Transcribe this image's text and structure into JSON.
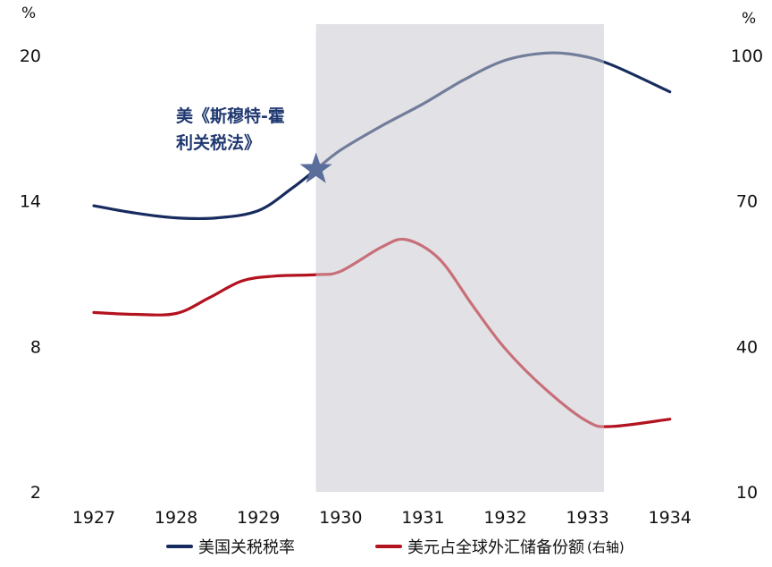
{
  "chart_data": {
    "type": "line",
    "title": "",
    "x": [
      1927,
      1928,
      1929,
      1930,
      1931,
      1932,
      1933,
      1934
    ],
    "x_tick_labels": [
      "1927",
      "1928",
      "1929",
      "1930",
      "1931",
      "1932",
      "1933",
      "1934"
    ],
    "y_left": {
      "unit": "%",
      "range": [
        2,
        20
      ],
      "ticks": [
        "20",
        "14",
        "8",
        "2"
      ]
    },
    "y_right": {
      "unit": "%",
      "range": [
        10,
        100
      ],
      "ticks": [
        "100",
        "70",
        "40",
        "10"
      ]
    },
    "shaded_region": {
      "x_start": 1929.7,
      "x_end": 1933.2,
      "color": "#e2e2e6"
    },
    "annotation": {
      "lines": [
        "美《斯穆特-霍",
        "利关税法》"
      ],
      "x": 1929.7,
      "y": 15.3
    },
    "grid": false,
    "legend_position": "bottom",
    "series": [
      {
        "name": "美国关税税率",
        "axis": "left",
        "color": "#172b5e",
        "x": [
          1927,
          1927.5,
          1928,
          1928.5,
          1929,
          1929.4,
          1929.7,
          1930,
          1930.5,
          1931,
          1931.5,
          1932,
          1932.5,
          1932.9,
          1933.3,
          1934
        ],
        "y": [
          13.8,
          13.5,
          13.3,
          13.3,
          13.6,
          14.5,
          15.3,
          16.1,
          17.1,
          18.0,
          19.0,
          19.8,
          20.1,
          20.0,
          19.6,
          18.5
        ]
      },
      {
        "name": "美元占全球外汇储备份额",
        "legend_suffix": "(右轴)",
        "axis": "right",
        "color": "#b3121f",
        "x": [
          1927,
          1927.5,
          1928,
          1928.4,
          1928.8,
          1929.2,
          1929.7,
          1930,
          1930.5,
          1930.8,
          1931.2,
          1931.6,
          1932,
          1932.5,
          1933,
          1933.3,
          1934
        ],
        "y": [
          47.0,
          46.6,
          46.8,
          50.0,
          53.5,
          54.5,
          54.8,
          55.5,
          60.5,
          62.0,
          58.0,
          48.5,
          39.5,
          31.0,
          24.5,
          23.5,
          25.0
        ]
      }
    ]
  }
}
